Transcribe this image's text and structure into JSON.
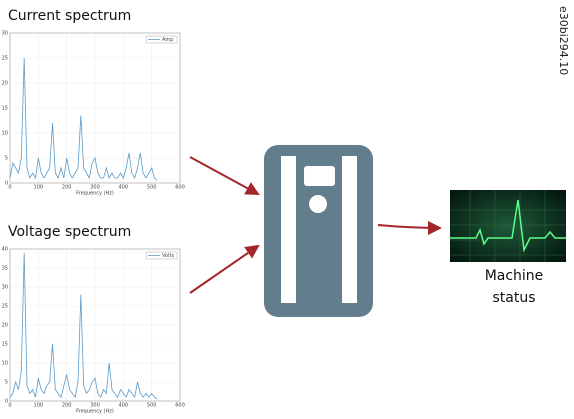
{
  "chart_data": [
    {
      "type": "line",
      "title": "Current spectrum",
      "x_label": "Frequency (Hz)",
      "x": [
        0,
        10,
        20,
        30,
        40,
        50,
        60,
        70,
        80,
        90,
        100,
        110,
        120,
        130,
        140,
        150,
        160,
        170,
        180,
        190,
        200,
        210,
        220,
        230,
        240,
        250,
        260,
        270,
        280,
        290,
        300,
        310,
        320,
        330,
        340,
        350,
        360,
        370,
        380,
        390,
        400,
        410,
        420,
        430,
        440,
        450,
        460,
        470,
        480,
        490,
        500,
        510,
        520
      ],
      "series": [
        {
          "name": "Amp",
          "color": "#5b9bc9",
          "values": [
            1,
            4,
            3,
            2,
            5,
            25,
            3,
            1,
            2,
            1,
            5,
            2,
            1,
            2,
            3,
            12,
            2,
            1,
            3,
            1,
            5,
            2,
            1,
            2,
            3,
            13.5,
            3,
            2,
            1,
            4,
            5,
            2,
            1,
            1,
            3,
            1,
            2,
            1,
            1,
            2,
            1,
            3,
            6,
            2,
            1,
            3,
            6,
            2,
            1,
            2,
            3,
            1,
            0.5
          ]
        }
      ],
      "xlim": [
        0,
        600
      ],
      "xticks": [
        0,
        100,
        200,
        300,
        400,
        500,
        600
      ],
      "ylim": [
        0,
        30
      ],
      "yticks": [
        0,
        5,
        10,
        15,
        20,
        25,
        30
      ],
      "grid": true
    },
    {
      "type": "line",
      "title": "Voltage spectrum",
      "x_label": "Frequency (Hz)",
      "x": [
        0,
        10,
        20,
        30,
        40,
        50,
        60,
        70,
        80,
        90,
        100,
        110,
        120,
        130,
        140,
        150,
        160,
        170,
        180,
        190,
        200,
        210,
        220,
        230,
        240,
        250,
        260,
        270,
        280,
        290,
        300,
        310,
        320,
        330,
        340,
        350,
        360,
        370,
        380,
        390,
        400,
        410,
        420,
        430,
        440,
        450,
        460,
        470,
        480,
        490,
        500,
        510,
        520
      ],
      "series": [
        {
          "name": "Volts",
          "color": "#5b9bc9",
          "values": [
            1,
            2,
            5,
            3,
            8,
            39,
            4,
            2,
            3,
            1,
            6,
            3,
            2,
            4,
            5,
            15,
            3,
            2,
            1,
            4,
            7,
            3,
            2,
            1,
            5,
            28,
            4,
            2,
            3,
            5,
            6,
            2,
            1,
            3,
            2,
            10,
            3,
            2,
            1,
            3,
            2,
            1,
            3,
            2,
            1,
            5,
            2,
            1,
            2,
            1,
            2,
            1,
            0.5
          ]
        }
      ],
      "xlim": [
        0,
        600
      ],
      "xticks": [
        0,
        100,
        200,
        300,
        400,
        500,
        600
      ],
      "ylim": [
        0,
        40
      ],
      "yticks": [
        0,
        5,
        10,
        15,
        20,
        25,
        30,
        35,
        40
      ],
      "grid": true
    }
  ],
  "diagram": {
    "figure_code": "e30bi294.10",
    "output_label": "Machine status"
  }
}
